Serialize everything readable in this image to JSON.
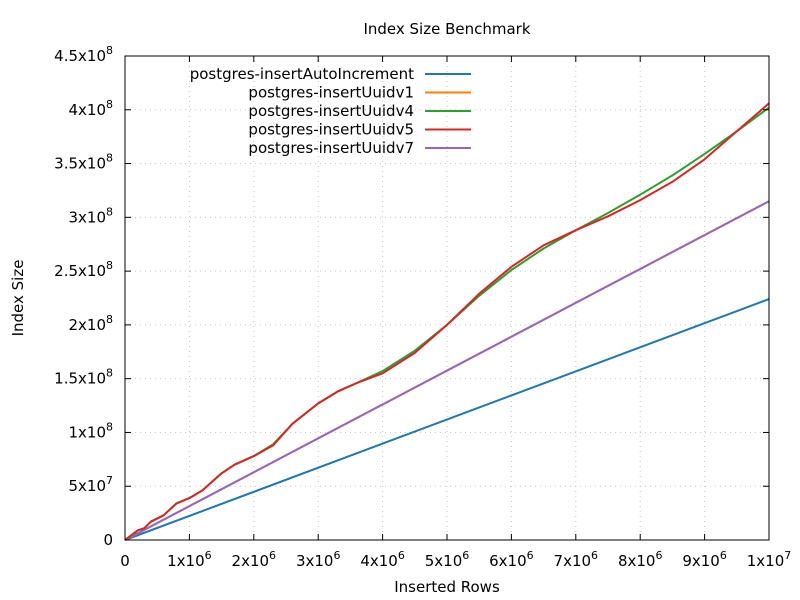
{
  "chart_data": {
    "type": "line",
    "title": "Index Size Benchmark",
    "xlabel": "Inserted Rows",
    "ylabel": "Index Size",
    "xlim": [
      0,
      10000000
    ],
    "ylim": [
      0,
      450000000
    ],
    "x_ticks": [
      {
        "value": 0,
        "base": "0",
        "exp": ""
      },
      {
        "value": 1000000,
        "base": "1x10",
        "exp": "6"
      },
      {
        "value": 2000000,
        "base": "2x10",
        "exp": "6"
      },
      {
        "value": 3000000,
        "base": "3x10",
        "exp": "6"
      },
      {
        "value": 4000000,
        "base": "4x10",
        "exp": "6"
      },
      {
        "value": 5000000,
        "base": "5x10",
        "exp": "6"
      },
      {
        "value": 6000000,
        "base": "6x10",
        "exp": "6"
      },
      {
        "value": 7000000,
        "base": "7x10",
        "exp": "6"
      },
      {
        "value": 8000000,
        "base": "8x10",
        "exp": "6"
      },
      {
        "value": 9000000,
        "base": "9x10",
        "exp": "6"
      },
      {
        "value": 10000000,
        "base": "1x10",
        "exp": "7"
      }
    ],
    "y_ticks": [
      {
        "value": 0,
        "base": "0",
        "exp": ""
      },
      {
        "value": 50000000,
        "base": "5x10",
        "exp": "7"
      },
      {
        "value": 100000000,
        "base": "1x10",
        "exp": "8"
      },
      {
        "value": 150000000,
        "base": "1.5x10",
        "exp": "8"
      },
      {
        "value": 200000000,
        "base": "2x10",
        "exp": "8"
      },
      {
        "value": 250000000,
        "base": "2.5x10",
        "exp": "8"
      },
      {
        "value": 300000000,
        "base": "3x10",
        "exp": "8"
      },
      {
        "value": 350000000,
        "base": "3.5x10",
        "exp": "8"
      },
      {
        "value": 400000000,
        "base": "4x10",
        "exp": "8"
      },
      {
        "value": 450000000,
        "base": "4.5x10",
        "exp": "8"
      }
    ],
    "grid": true,
    "legend_position": "top-left",
    "series": [
      {
        "name": "postgres-insertAutoIncrement",
        "color": "#1f77b4",
        "x": [
          0,
          10000000
        ],
        "y": [
          0,
          224000000
        ]
      },
      {
        "name": "postgres-insertUuidv1",
        "color": "#ff7f0e",
        "x": [
          0,
          10000000
        ],
        "y": [
          0,
          315000000
        ]
      },
      {
        "name": "postgres-insertUuidv4",
        "color": "#2ca02c",
        "x": [
          0,
          200000,
          300000,
          400000,
          600000,
          800000,
          1000000,
          1200000,
          1500000,
          1700000,
          2000000,
          2300000,
          2600000,
          3000000,
          3300000,
          3600000,
          4000000,
          4500000,
          5000000,
          5500000,
          6000000,
          6500000,
          7000000,
          7500000,
          8000000,
          8500000,
          9000000,
          9500000,
          10000000
        ],
        "y": [
          0,
          9000000,
          11000000,
          17000000,
          23000000,
          34000000,
          39000000,
          46000000,
          62000000,
          70000000,
          78000000,
          89000000,
          108000000,
          127000000,
          138000000,
          146000000,
          157000000,
          176000000,
          200000000,
          227000000,
          251000000,
          271000000,
          288000000,
          304000000,
          321000000,
          339000000,
          359000000,
          380000000,
          402000000
        ]
      },
      {
        "name": "postgres-insertUuidv5",
        "color": "#d62728",
        "x": [
          0,
          200000,
          300000,
          400000,
          600000,
          800000,
          1000000,
          1200000,
          1500000,
          1700000,
          2000000,
          2300000,
          2600000,
          3000000,
          3300000,
          3600000,
          4000000,
          4500000,
          5000000,
          5500000,
          6000000,
          6500000,
          7000000,
          7500000,
          8000000,
          8500000,
          9000000,
          9500000,
          10000000
        ],
        "y": [
          0,
          9000000,
          11000000,
          17000000,
          23000000,
          34000000,
          39000000,
          46000000,
          62000000,
          70000000,
          78000000,
          88000000,
          108000000,
          127000000,
          138000000,
          146000000,
          155000000,
          174000000,
          200000000,
          229000000,
          254000000,
          274000000,
          288000000,
          301000000,
          316000000,
          333000000,
          354000000,
          380000000,
          406000000
        ]
      },
      {
        "name": "postgres-insertUuidv7",
        "color": "#9467bd",
        "x": [
          0,
          10000000
        ],
        "y": [
          0,
          315000000
        ]
      }
    ]
  }
}
